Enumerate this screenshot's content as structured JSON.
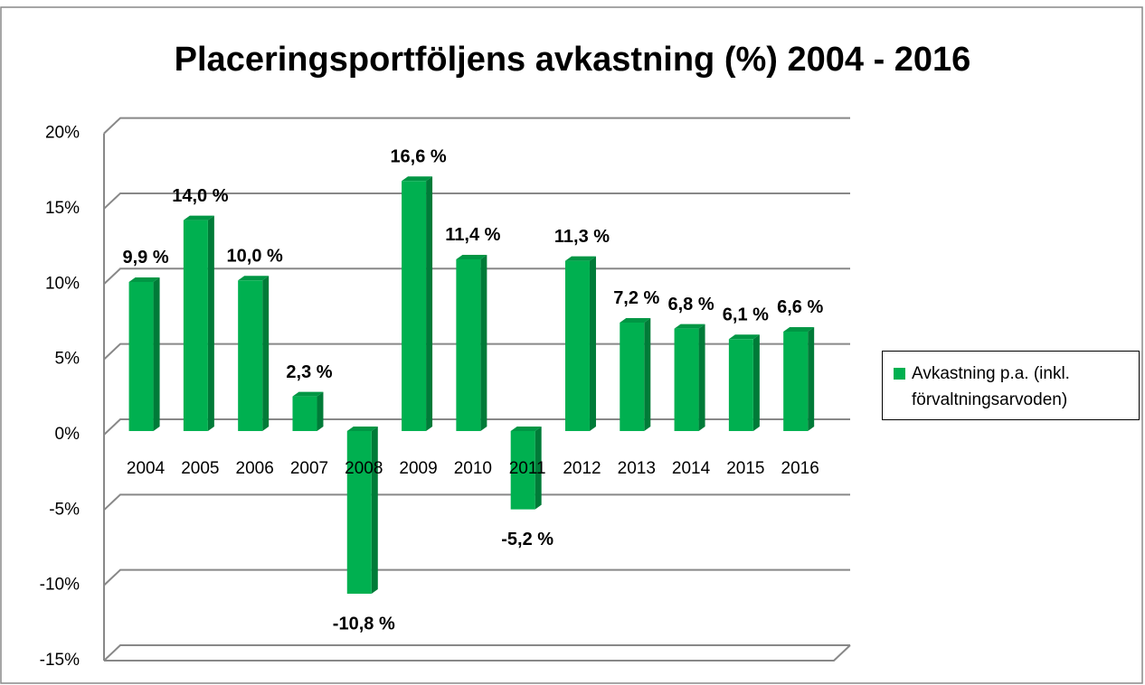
{
  "chart_data": {
    "type": "bar3d",
    "title": "Placeringsportföljens avkastning (%) 2004 - 2016",
    "categories": [
      "2004",
      "2005",
      "2006",
      "2007",
      "2008",
      "2009",
      "2010",
      "2011",
      "2012",
      "2013",
      "2014",
      "2015",
      "2016"
    ],
    "series": [
      {
        "name": "Avkastning p.a. (inkl. förvaltningsarvoden)",
        "color": "#00b050",
        "values": [
          9.9,
          14.0,
          10.0,
          2.3,
          -10.8,
          16.6,
          11.4,
          -5.2,
          11.3,
          7.2,
          6.8,
          6.1,
          6.6
        ],
        "value_labels": [
          "9,9 %",
          "14,0 %",
          "10,0 %",
          "2,3 %",
          "-10,8 %",
          "16,6 %",
          "11,4 %",
          "-5,2 %",
          "11,3 %",
          "7,2 %",
          "6,8 %",
          "6,1 %",
          "6,6 %"
        ]
      }
    ],
    "ylim": [
      -15,
      20
    ],
    "yticks": [
      {
        "value": -15,
        "label": "-15%"
      },
      {
        "value": -10,
        "label": "-10%"
      },
      {
        "value": -5,
        "label": "-5%"
      },
      {
        "value": 0,
        "label": "0%"
      },
      {
        "value": 5,
        "label": "5%"
      },
      {
        "value": 10,
        "label": "10%"
      },
      {
        "value": 15,
        "label": "15%"
      },
      {
        "value": 20,
        "label": "20%"
      }
    ],
    "grid": true,
    "legend": "right"
  }
}
